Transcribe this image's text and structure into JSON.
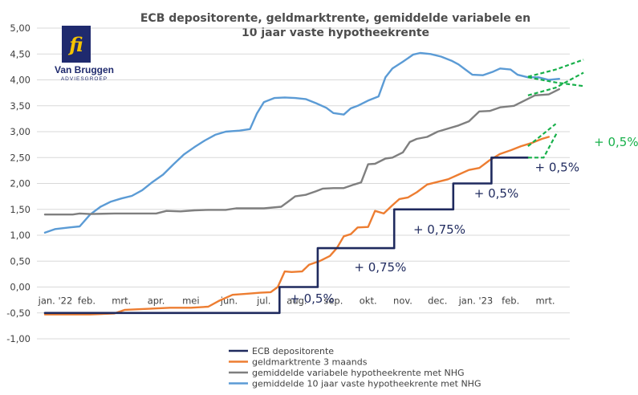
{
  "chart_data": {
    "type": "line",
    "title_lines": [
      "ECB depositorente, geldmarktrente, gemiddelde variabele en",
      "10 jaar vaste hypotheekrente"
    ],
    "ylim": [
      -1.0,
      5.0
    ],
    "yticks": [
      "5,00",
      "4,50",
      "4,00",
      "3,50",
      "3,00",
      "2,50",
      "2,00",
      "1,50",
      "1,00",
      "0,50",
      "0,00",
      "-0,50",
      "-1,00"
    ],
    "ytick_values": [
      5.0,
      4.5,
      4.0,
      3.5,
      3.0,
      2.5,
      2.0,
      1.5,
      1.0,
      0.5,
      0.0,
      -0.5,
      -1.0
    ],
    "xlim": [
      0,
      15
    ],
    "xticks": [
      {
        "label": "jan. '22",
        "x": 0.3
      },
      {
        "label": "feb.",
        "x": 1.2
      },
      {
        "label": "mrt.",
        "x": 2.2
      },
      {
        "label": "apr.",
        "x": 3.2
      },
      {
        "label": "mei",
        "x": 4.2
      },
      {
        "label": "jun.",
        "x": 5.3
      },
      {
        "label": "jul.",
        "x": 6.3
      },
      {
        "label": "aug.",
        "x": 7.25
      },
      {
        "label": "sep.",
        "x": 8.3
      },
      {
        "label": "okt.",
        "x": 9.3
      },
      {
        "label": "nov.",
        "x": 10.3
      },
      {
        "label": "dec.",
        "x": 11.3
      },
      {
        "label": "jan. '23",
        "x": 12.4
      },
      {
        "label": "feb.",
        "x": 13.4
      },
      {
        "label": "mrt.",
        "x": 14.4
      }
    ],
    "grid": true,
    "legend_position": "bottom-center",
    "series": [
      {
        "name": "ECB depositorente",
        "color": "#1f2a5e",
        "style": "step",
        "points": [
          [
            0,
            -0.5
          ],
          [
            6.75,
            -0.5
          ],
          [
            6.75,
            0.0
          ],
          [
            7.85,
            0.0
          ],
          [
            7.85,
            0.75
          ],
          [
            10.05,
            0.75
          ],
          [
            10.05,
            1.5
          ],
          [
            11.75,
            1.5
          ],
          [
            11.75,
            2.0
          ],
          [
            12.85,
            2.0
          ],
          [
            12.85,
            2.5
          ],
          [
            13.9,
            2.5
          ]
        ]
      },
      {
        "name": "geldmarktrente 3 maands",
        "color": "#ed7d31",
        "style": "line",
        "points": [
          [
            0,
            -0.53
          ],
          [
            1.3,
            -0.53
          ],
          [
            2.0,
            -0.51
          ],
          [
            2.3,
            -0.44
          ],
          [
            3.0,
            -0.42
          ],
          [
            3.6,
            -0.4
          ],
          [
            4.2,
            -0.4
          ],
          [
            4.7,
            -0.38
          ],
          [
            5.0,
            -0.27
          ],
          [
            5.4,
            -0.15
          ],
          [
            5.8,
            -0.13
          ],
          [
            6.2,
            -0.11
          ],
          [
            6.5,
            -0.1
          ],
          [
            6.7,
            0.0
          ],
          [
            6.9,
            0.3
          ],
          [
            7.1,
            0.29
          ],
          [
            7.4,
            0.3
          ],
          [
            7.6,
            0.43
          ],
          [
            7.9,
            0.5
          ],
          [
            8.2,
            0.6
          ],
          [
            8.4,
            0.75
          ],
          [
            8.6,
            0.98
          ],
          [
            8.8,
            1.02
          ],
          [
            9.0,
            1.15
          ],
          [
            9.3,
            1.16
          ],
          [
            9.5,
            1.47
          ],
          [
            9.75,
            1.42
          ],
          [
            10.0,
            1.58
          ],
          [
            10.2,
            1.7
          ],
          [
            10.45,
            1.73
          ],
          [
            10.7,
            1.83
          ],
          [
            11.0,
            1.98
          ],
          [
            11.3,
            2.03
          ],
          [
            11.6,
            2.08
          ],
          [
            11.9,
            2.17
          ],
          [
            12.2,
            2.26
          ],
          [
            12.5,
            2.3
          ],
          [
            12.8,
            2.45
          ],
          [
            13.1,
            2.57
          ],
          [
            13.4,
            2.64
          ],
          [
            13.7,
            2.72
          ],
          [
            14.0,
            2.78
          ],
          [
            14.3,
            2.86
          ],
          [
            14.5,
            2.9
          ]
        ]
      },
      {
        "name": "gemiddelde variabele hypotheekrente met NHG",
        "color": "#7f7f7f",
        "style": "line",
        "points": [
          [
            0,
            1.4
          ],
          [
            0.8,
            1.4
          ],
          [
            1.0,
            1.42
          ],
          [
            1.3,
            1.41
          ],
          [
            2.0,
            1.42
          ],
          [
            2.5,
            1.42
          ],
          [
            3.2,
            1.42
          ],
          [
            3.5,
            1.47
          ],
          [
            3.9,
            1.46
          ],
          [
            4.3,
            1.48
          ],
          [
            4.7,
            1.49
          ],
          [
            5.2,
            1.49
          ],
          [
            5.5,
            1.52
          ],
          [
            5.8,
            1.52
          ],
          [
            6.3,
            1.52
          ],
          [
            6.8,
            1.55
          ],
          [
            7.0,
            1.65
          ],
          [
            7.2,
            1.75
          ],
          [
            7.5,
            1.78
          ],
          [
            7.8,
            1.85
          ],
          [
            8.0,
            1.9
          ],
          [
            8.3,
            1.91
          ],
          [
            8.6,
            1.91
          ],
          [
            8.9,
            1.98
          ],
          [
            9.1,
            2.02
          ],
          [
            9.3,
            2.37
          ],
          [
            9.5,
            2.38
          ],
          [
            9.8,
            2.48
          ],
          [
            10.0,
            2.5
          ],
          [
            10.3,
            2.6
          ],
          [
            10.5,
            2.8
          ],
          [
            10.7,
            2.86
          ],
          [
            11.0,
            2.9
          ],
          [
            11.3,
            3.0
          ],
          [
            11.6,
            3.06
          ],
          [
            11.9,
            3.12
          ],
          [
            12.2,
            3.2
          ],
          [
            12.5,
            3.39
          ],
          [
            12.8,
            3.4
          ],
          [
            13.1,
            3.47
          ],
          [
            13.5,
            3.5
          ],
          [
            13.8,
            3.6
          ],
          [
            14.1,
            3.7
          ],
          [
            14.5,
            3.72
          ],
          [
            14.8,
            3.82
          ]
        ]
      },
      {
        "name": "gemiddelde 10 jaar vaste hypotheekrente met NHG",
        "color": "#5b9bd5",
        "style": "line",
        "points": [
          [
            0,
            1.05
          ],
          [
            0.3,
            1.12
          ],
          [
            0.7,
            1.15
          ],
          [
            1.0,
            1.17
          ],
          [
            1.3,
            1.4
          ],
          [
            1.6,
            1.55
          ],
          [
            1.9,
            1.65
          ],
          [
            2.2,
            1.71
          ],
          [
            2.5,
            1.76
          ],
          [
            2.8,
            1.87
          ],
          [
            3.1,
            2.03
          ],
          [
            3.4,
            2.17
          ],
          [
            3.7,
            2.37
          ],
          [
            4.0,
            2.56
          ],
          [
            4.3,
            2.7
          ],
          [
            4.6,
            2.83
          ],
          [
            4.9,
            2.94
          ],
          [
            5.2,
            3.0
          ],
          [
            5.6,
            3.02
          ],
          [
            5.9,
            3.05
          ],
          [
            6.1,
            3.35
          ],
          [
            6.3,
            3.57
          ],
          [
            6.6,
            3.65
          ],
          [
            6.9,
            3.66
          ],
          [
            7.2,
            3.65
          ],
          [
            7.5,
            3.63
          ],
          [
            7.8,
            3.55
          ],
          [
            8.1,
            3.46
          ],
          [
            8.3,
            3.36
          ],
          [
            8.6,
            3.33
          ],
          [
            8.8,
            3.45
          ],
          [
            9.0,
            3.5
          ],
          [
            9.3,
            3.6
          ],
          [
            9.6,
            3.68
          ],
          [
            9.8,
            4.05
          ],
          [
            10.0,
            4.22
          ],
          [
            10.3,
            4.35
          ],
          [
            10.6,
            4.49
          ],
          [
            10.8,
            4.52
          ],
          [
            11.1,
            4.5
          ],
          [
            11.4,
            4.45
          ],
          [
            11.7,
            4.37
          ],
          [
            11.9,
            4.3
          ],
          [
            12.1,
            4.2
          ],
          [
            12.3,
            4.1
          ],
          [
            12.6,
            4.09
          ],
          [
            12.9,
            4.16
          ],
          [
            13.1,
            4.22
          ],
          [
            13.4,
            4.2
          ],
          [
            13.6,
            4.1
          ],
          [
            13.9,
            4.05
          ],
          [
            14.2,
            4.05
          ],
          [
            14.5,
            4.0
          ],
          [
            14.8,
            4.02
          ]
        ]
      }
    ],
    "projections": [
      {
        "color": "#17b04a",
        "points": [
          [
            13.9,
            2.5
          ],
          [
            14.35,
            2.5
          ],
          [
            14.75,
            3.0
          ]
        ]
      },
      {
        "color": "#17b04a",
        "points": [
          [
            13.9,
            2.72
          ],
          [
            14.7,
            3.15
          ]
        ]
      },
      {
        "color": "#17b04a",
        "points": [
          [
            13.9,
            4.05
          ],
          [
            14.7,
            3.95
          ],
          [
            15.5,
            3.88
          ]
        ]
      },
      {
        "color": "#17b04a",
        "points": [
          [
            13.9,
            4.06
          ],
          [
            14.7,
            4.2
          ],
          [
            15.5,
            4.39
          ]
        ]
      },
      {
        "color": "#17b04a",
        "points": [
          [
            13.9,
            3.7
          ],
          [
            14.7,
            3.85
          ],
          [
            15.5,
            4.14
          ]
        ]
      }
    ],
    "annotations": [
      {
        "text": "+ 0,5%",
        "color": "blue",
        "x": 7.05,
        "y": -0.3
      },
      {
        "text": "+ 0,75%",
        "color": "blue",
        "x": 8.9,
        "y": 0.3
      },
      {
        "text": "+ 0,75%",
        "color": "blue",
        "x": 10.6,
        "y": 1.03
      },
      {
        "text": "+ 0,5%",
        "color": "blue",
        "x": 12.35,
        "y": 1.73
      },
      {
        "text": "+ 0,5%",
        "color": "blue",
        "x": 14.1,
        "y": 2.23
      },
      {
        "text": "+ 0,5%",
        "color": "green",
        "x": 15.8,
        "y": 2.72
      }
    ]
  },
  "logo": {
    "brand_name": "Van Bruggen",
    "sub_name": "ADVIESGROEP",
    "monogram": "fi",
    "colors": {
      "navy": "#1f2a6e",
      "yellow": "#f5c400"
    }
  }
}
